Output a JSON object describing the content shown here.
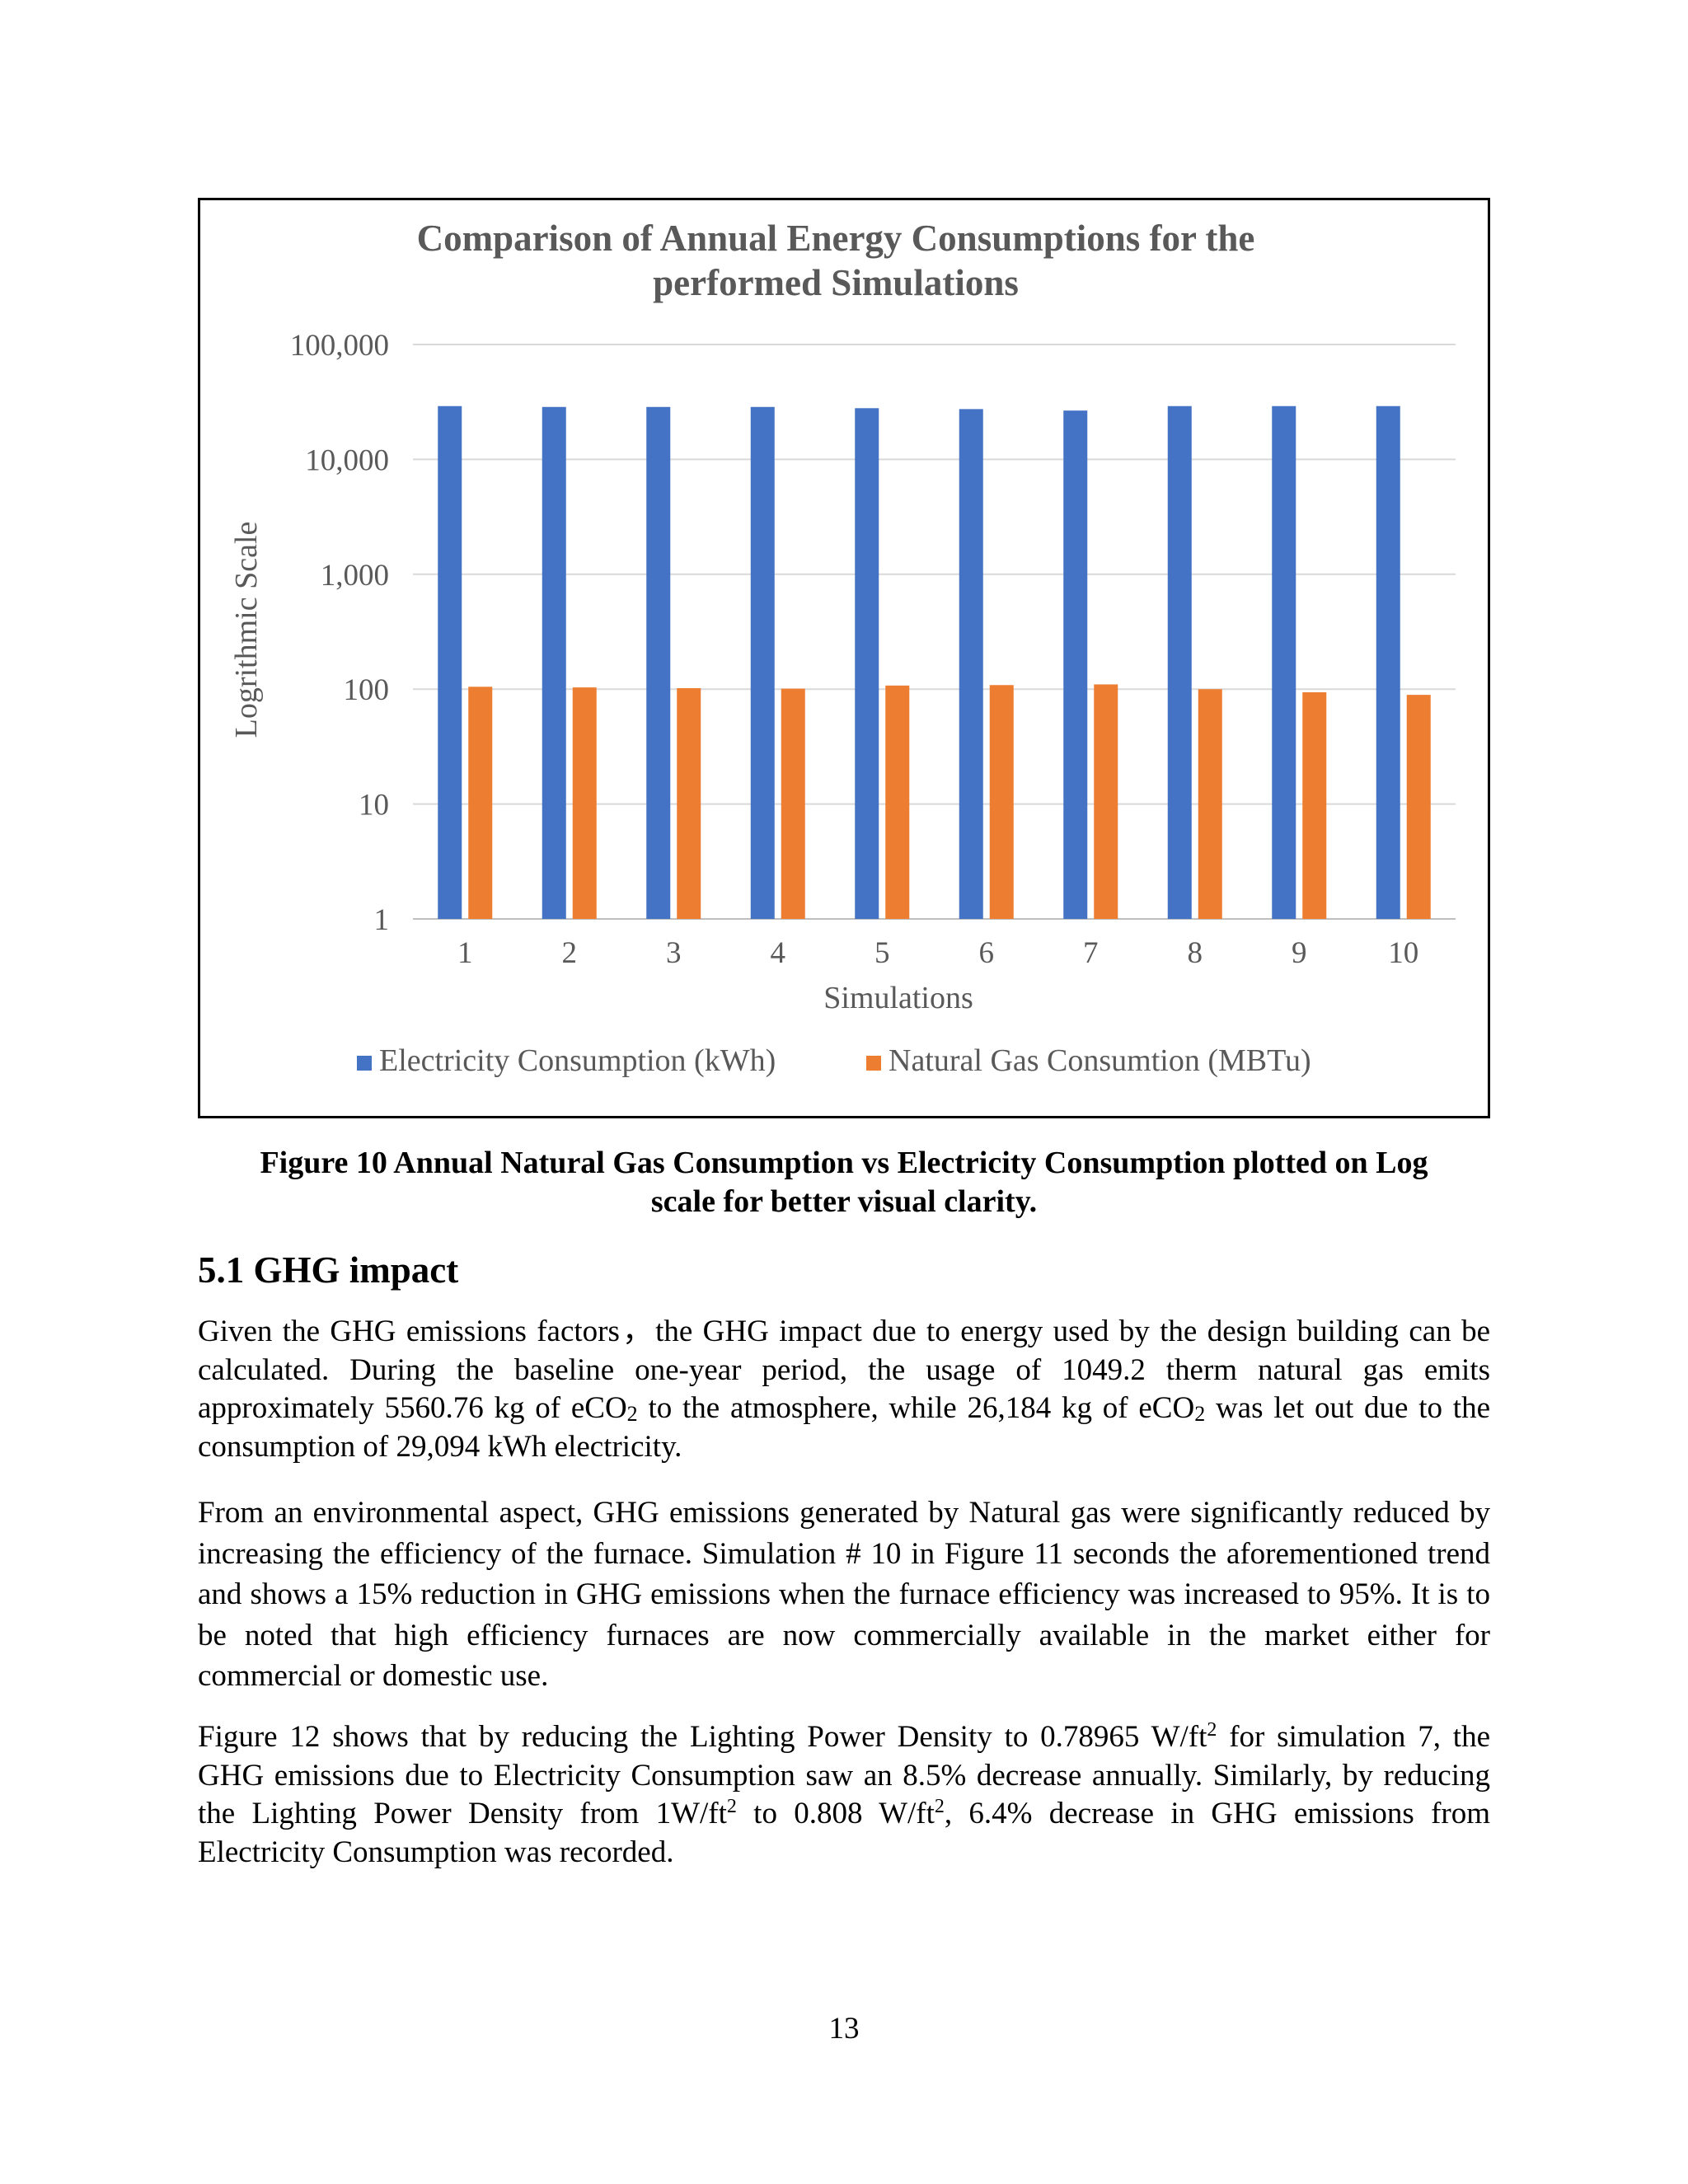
{
  "chart_data": {
    "type": "bar",
    "title": "Comparison of Annual Energy Consumptions for the performed Simulations",
    "title_lines": [
      "Comparison of Annual Energy Consumptions for the",
      "performed Simulations"
    ],
    "xlabel": "Simulations",
    "ylabel": "Logrithmic Scale",
    "y_scale": "log",
    "ylim": [
      1,
      100000
    ],
    "y_ticks": [
      1,
      10,
      100,
      1000,
      10000,
      100000
    ],
    "y_tick_labels": [
      "1",
      "10",
      "100",
      "1,000",
      "10,000",
      "100,000"
    ],
    "grid": "horizontal",
    "legend_position": "bottom",
    "categories": [
      "1",
      "2",
      "3",
      "4",
      "5",
      "6",
      "7",
      "8",
      "9",
      "10"
    ],
    "series": [
      {
        "name": "Electricity Consumption (kWh)",
        "color": "#4472C4",
        "values": [
          29094,
          28600,
          28600,
          28600,
          27900,
          27400,
          26600,
          29094,
          29094,
          29094
        ]
      },
      {
        "name": "Natural Gas Consumtion (MBTu)",
        "color": "#ED7D31",
        "values": [
          104.9,
          103.5,
          102,
          101,
          107.5,
          108.5,
          110,
          100,
          94,
          89.2
        ]
      }
    ]
  },
  "caption": {
    "line1": "Figure 10 Annual Natural Gas Consumption vs Electricity Consumption plotted on Log",
    "line2": "scale for better visual clarity."
  },
  "section_heading": "5.1 GHG impact",
  "para1": {
    "a": "Given the GHG emissions factors，the GHG impact due to energy used by the design building can be calculated. During the baseline one-year period, the usage of 1049.2 therm natural gas emits approximately 5560.76 kg of eCO",
    "sub1": "2",
    "b": " to the atmosphere, while 26,184 kg of eCO",
    "sub2": "2",
    "c": " was let out due to the consumption of 29,094 kWh electricity."
  },
  "para2": "From an environmental aspect, GHG emissions generated by Natural gas were significantly reduced by increasing the efficiency of the furnace. Simulation # 10 in Figure 11 seconds the aforementioned trend and shows a 15% reduction in GHG emissions when the furnace efficiency was increased to 95%. It is to be noted that high efficiency furnaces are now commercially available in the market either for commercial or domestic use.",
  "para3": {
    "a": "Figure 12 shows that by reducing the Lighting Power Density to 0.78965 W/ft",
    "sup1": "2",
    "b": " for simulation 7, the GHG emissions due to Electricity Consumption saw an 8.5% decrease annually. Similarly, by reducing the Lighting Power Density from 1W/ft",
    "sup2": "2",
    "c": " to 0.808 W/ft",
    "sup3": "2",
    "d": ", 6.4% decrease in GHG emissions from Electricity Consumption was recorded."
  },
  "page_number": "13"
}
